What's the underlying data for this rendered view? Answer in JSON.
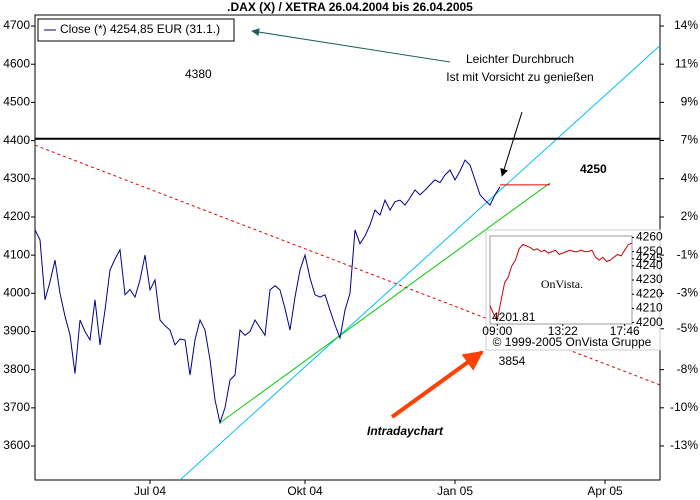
{
  "chart_data": [
    {
      "type": "line",
      "title": ".DAX (X) / XETRA 26.04.2004 bis 26.04.2005",
      "series": [
        {
          "name": "Close (*) 4254,85 EUR (31.1.)",
          "color": "#00008b",
          "values": [
            4166,
            4140,
            3983,
            4030,
            4087,
            4000,
            3940,
            3891,
            3790,
            3930,
            3900,
            3878,
            3983,
            3865,
            3956,
            4061,
            4090,
            4114,
            3996,
            4010,
            3990,
            4035,
            4100,
            4009,
            4035,
            3930,
            3915,
            3904,
            3865,
            3880,
            3878,
            3786,
            3878,
            3930,
            3904,
            3826,
            3721,
            3661,
            3700,
            3773,
            3786,
            3904,
            3890,
            3900,
            3930,
            3910,
            3890,
            4009,
            4020,
            4009,
            3960,
            3904,
            3990,
            4061,
            4100,
            4040,
            3996,
            3990,
            3996,
            3956,
            3917,
            3883,
            3956,
            4000,
            4166,
            4130,
            4150,
            4179,
            4218,
            4205,
            4244,
            4218,
            4240,
            4244,
            4231,
            4250,
            4271,
            4258,
            4270,
            4284,
            4297,
            4290,
            4310,
            4323,
            4297,
            4320,
            4349,
            4336,
            4297,
            4258,
            4244,
            4231,
            4258,
            4279
          ]
        }
      ],
      "xlim": [
        0,
        125
      ],
      "xticks": [
        {
          "value": 23,
          "label": "Jul 04"
        },
        {
          "value": 54,
          "label": "Okt 04"
        },
        {
          "value": 84,
          "label": "Jan 05"
        },
        {
          "value": 114,
          "label": "Apr 05"
        }
      ],
      "ylim": [
        3511,
        4729
      ],
      "yticks": [
        3600,
        3700,
        3800,
        3900,
        4000,
        4100,
        4200,
        4300,
        4400,
        4500,
        4600,
        4700
      ],
      "y2lim": [
        -14.99,
        14.5
      ],
      "y2ticks": [
        {
          "value": 13.8,
          "label": "14%"
        },
        {
          "value": 11.38,
          "label": "11%"
        },
        {
          "value": 8.96,
          "label": "9%"
        },
        {
          "value": 6.54,
          "label": "7%"
        },
        {
          "value": 4.12,
          "label": "4%"
        },
        {
          "value": 1.69,
          "label": "2%"
        },
        {
          "value": -0.73,
          "label": "-1%"
        },
        {
          "value": -3.15,
          "label": "-3%"
        },
        {
          "value": -5.4,
          "label": "-5%"
        },
        {
          "value": -7.99,
          "label": "-8%"
        },
        {
          "value": -10.41,
          "label": "-10%"
        },
        {
          "value": -12.83,
          "label": "-13%"
        }
      ],
      "lines": [
        {
          "color": "#00bfff",
          "style": "solid",
          "x": [
            29,
            125
          ],
          "y": [
            3511,
            4649
          ]
        },
        {
          "color": "#00cc00",
          "style": "solid",
          "x": [
            37,
            103
          ],
          "y": [
            3661,
            4289
          ]
        },
        {
          "color": "#e00000",
          "style": "dashed",
          "x": [
            0,
            125
          ],
          "y": [
            4388,
            3760
          ]
        },
        {
          "color": "#e00000",
          "style": "solid",
          "x": [
            93,
            103
          ],
          "y": [
            4284,
            4284
          ]
        },
        {
          "color": "#000000",
          "style": "solid",
          "x": [
            0,
            125
          ],
          "y": [
            4405,
            4405
          ]
        }
      ],
      "annotations": [
        "4380",
        "4250",
        "Leichter Durchbruch",
        "Ist mit Vorsicht zu genießen",
        "Intradaychart",
        "3854"
      ]
    },
    {
      "type": "line",
      "watermark": "OnVista.",
      "series": [
        {
          "color": "#cc0000",
          "values": [
            4212,
            4206,
            4201.81,
            4215,
            4228,
            4232,
            4240,
            4244,
            4252,
            4255,
            4254,
            4253,
            4251,
            4252,
            4250,
            4251,
            4249,
            4250,
            4251,
            4248,
            4249,
            4250,
            4251,
            4250,
            4250,
            4251,
            4250,
            4250,
            4251,
            4246,
            4244,
            4246,
            4243,
            4244,
            4246,
            4248,
            4247,
            4251,
            4255,
            4256
          ]
        }
      ],
      "xlim": [
        0,
        39
      ],
      "xticks": [
        {
          "value": 2,
          "label": "09:00"
        },
        {
          "value": 20,
          "label": "13:22"
        },
        {
          "value": 37,
          "label": "17:46"
        }
      ],
      "ylim": [
        4199,
        4261
      ],
      "yticks": [
        4200,
        4210,
        4220,
        4230,
        4240,
        4245,
        4250,
        4260
      ],
      "annotations": [
        "4201.81",
        "© 1999-2005 OnVista Gruppe"
      ]
    }
  ]
}
